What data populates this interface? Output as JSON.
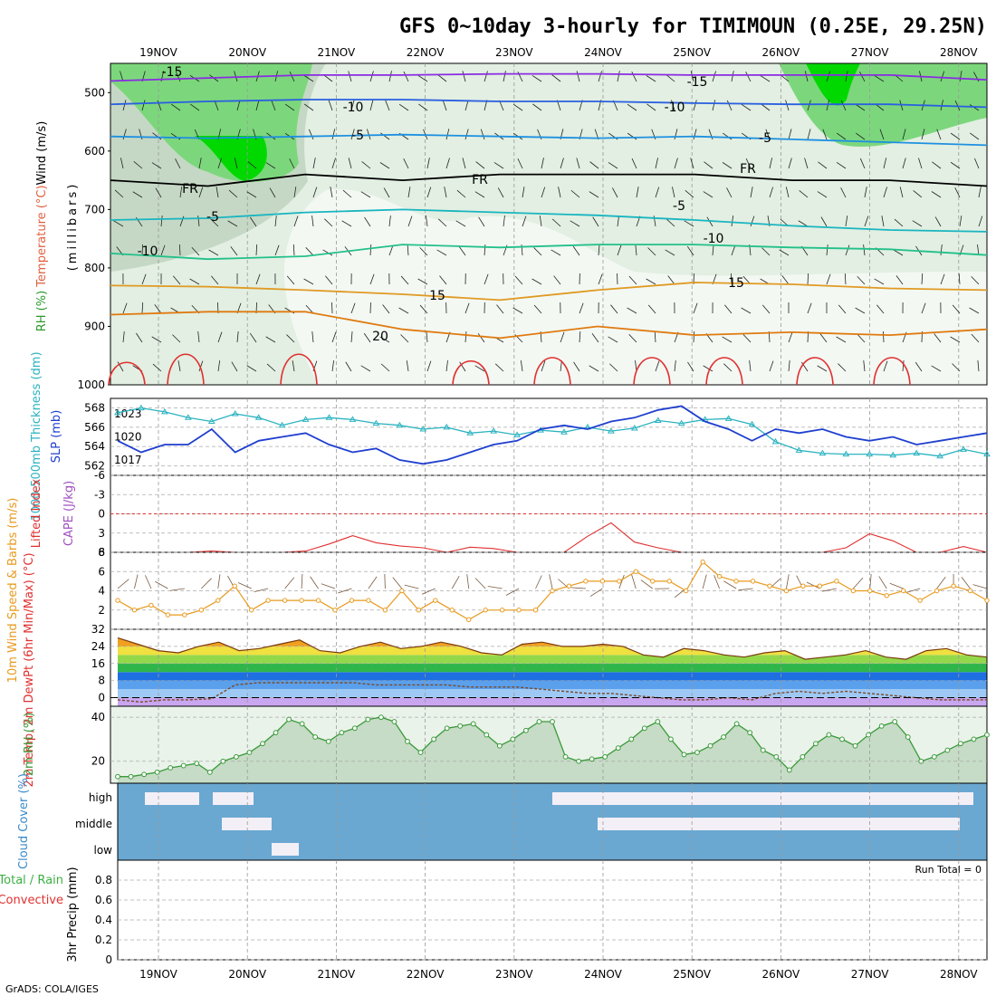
{
  "title": "GFS 0~10day 3-hourly for TIMIMOUN (0.25E, 29.25N)",
  "footer": "GrADS: COLA/IGES",
  "run_total": "Run Total = 0",
  "dates": [
    "19NOV",
    "20NOV",
    "21NOV",
    "22NOV",
    "23NOV",
    "24NOV",
    "25NOV",
    "26NOV",
    "27NOV",
    "28NOV"
  ],
  "colors": {
    "rh_dark": "#00d800",
    "rh_mid": "#7cd77c",
    "rh_light": "#e2efe2",
    "slp": "#1f3fcf",
    "thickness": "#2bb3c0",
    "lifted": "#e03030",
    "wind_speed": "#e89a1e",
    "rh2m": "#3a9a3a",
    "cloud": "#6aa8d2",
    "precip_rain": "#3cb043",
    "precip_conv": "#e03030"
  },
  "chart_data": [
    {
      "type": "heatmap",
      "panel": "upper-air",
      "ylabels": [
        "Wind (m/s)",
        "Temperature (°C)",
        "RH (%)",
        "millibars"
      ],
      "yticks": [
        500,
        600,
        700,
        800,
        900,
        1000
      ],
      "contour_labels": [
        "-15",
        "-15",
        "-10",
        "-10",
        "-5",
        "-5",
        "FR",
        "FR",
        "FR",
        "-5",
        "-5",
        "-10",
        "-10",
        "15",
        "15",
        "20"
      ],
      "isotherms": [
        {
          "name": "-15",
          "color": "#8a2be2",
          "values": [
            480,
            475,
            470,
            470,
            468,
            468,
            470,
            470,
            470,
            478
          ]
        },
        {
          "name": "-10",
          "color": "#2a5fe0",
          "values": [
            520,
            515,
            512,
            512,
            515,
            515,
            518,
            520,
            520,
            525
          ]
        },
        {
          "name": "-5",
          "color": "#1e90e0",
          "values": [
            575,
            578,
            575,
            572,
            575,
            578,
            575,
            580,
            585,
            590
          ]
        },
        {
          "name": "FR",
          "color": "#000000",
          "values": [
            650,
            660,
            640,
            650,
            640,
            640,
            640,
            650,
            650,
            660
          ]
        },
        {
          "name": "5",
          "color": "#19b5c0",
          "values": [
            718,
            715,
            705,
            700,
            705,
            710,
            718,
            728,
            735,
            738
          ]
        },
        {
          "name": "10",
          "color": "#22c08a",
          "values": [
            775,
            785,
            780,
            760,
            765,
            760,
            760,
            765,
            768,
            778
          ]
        },
        {
          "name": "15",
          "color": "#e09a22",
          "values": [
            830,
            832,
            838,
            845,
            855,
            838,
            825,
            828,
            835,
            838
          ]
        },
        {
          "name": "20",
          "color": "#e07a10",
          "values": [
            880,
            875,
            875,
            905,
            920,
            900,
            915,
            910,
            915,
            905
          ]
        }
      ]
    },
    {
      "type": "line",
      "panel": "pressure",
      "ylabel_left": "1000-500mb Thickness (dm)",
      "ylabel_right": "SLP (mb)",
      "left_ticks": [
        "568",
        "566",
        "564",
        "562"
      ],
      "right_ticks": [
        "1023",
        "1020",
        "1017"
      ],
      "series": [
        {
          "name": "SLP (mb)",
          "values": [
            1019.5,
            1018,
            1019,
            1019,
            1021,
            1018,
            1019.5,
            1020,
            1020.5,
            1019,
            1018,
            1018.5,
            1017,
            1016.5,
            1017,
            1018,
            1019,
            1019.5,
            1021,
            1021.5,
            1021,
            1022,
            1022.5,
            1023.5,
            1024,
            1022,
            1021,
            1019.5,
            1021,
            1020.5,
            1021,
            1020,
            1019.5,
            1020,
            1019,
            1019.5,
            1020,
            1020.5
          ]
        },
        {
          "name": "1000-500mb Thickness (dm)",
          "values": [
            567.5,
            568,
            567.6,
            567,
            566.6,
            567.4,
            567,
            566.2,
            566.8,
            567,
            566.8,
            566.4,
            566.2,
            565.8,
            566,
            565.4,
            565.6,
            565.2,
            565.7,
            565.5,
            566,
            565.6,
            565.9,
            566.7,
            566.4,
            566.8,
            566.9,
            566.3,
            564.5,
            563.6,
            563.3,
            563.2,
            563.2,
            563.1,
            563.3,
            563.0,
            563.7,
            563.2
          ]
        }
      ]
    },
    {
      "type": "line",
      "panel": "instability",
      "ylabel": "Lifted Index",
      "ylabel2": "CAPE (J/kg)",
      "yticks": [
        "6",
        "3",
        "0",
        "-3",
        "-6"
      ],
      "series": [
        {
          "name": "Lifted Index",
          "values": [
            6,
            6,
            6,
            6,
            5.8,
            6,
            6,
            6,
            5.8,
            4.7,
            3.4,
            4.5,
            5,
            5.3,
            6,
            5.2,
            5.4,
            6,
            6,
            6,
            3.5,
            1.4,
            4.4,
            5.3,
            6,
            6,
            6,
            6,
            6,
            6,
            6,
            5.3,
            3.1,
            4.2,
            6,
            6,
            5.1,
            6
          ]
        }
      ]
    },
    {
      "type": "line",
      "panel": "wind",
      "ylabel": "10m Wind Speed & Barbs (m/s)",
      "yticks": [
        "8",
        "6",
        "4",
        "2"
      ],
      "series": [
        {
          "name": "10m Wind Speed",
          "values": [
            3,
            2,
            2.5,
            1.5,
            1.5,
            2,
            3,
            4.5,
            2,
            3,
            3,
            3,
            3,
            2,
            3,
            3,
            2,
            4,
            2,
            3,
            2,
            1,
            2,
            2,
            2,
            2,
            4,
            4.5,
            5,
            5,
            5,
            6,
            5,
            5,
            4,
            7,
            5.5,
            5,
            5,
            4.5,
            4,
            4.5,
            4.5,
            5,
            4,
            4,
            3.5,
            4,
            3,
            4,
            4.5,
            4,
            3
          ]
        }
      ]
    },
    {
      "type": "area",
      "panel": "temperature",
      "ylabel": "2m Temp, 2m DewPt (6hr Min/Max) (°C)",
      "yticks": [
        "32",
        "24",
        "16",
        "8",
        "0"
      ],
      "series": [
        {
          "name": "2m Temp",
          "values": [
            28,
            25,
            22,
            21,
            24,
            26,
            22,
            23,
            25,
            27,
            22,
            21,
            24,
            26,
            23,
            24,
            26,
            24,
            21,
            20,
            25,
            26,
            24,
            24,
            25,
            24,
            20,
            19,
            23,
            22,
            20,
            19,
            21,
            22,
            18,
            19,
            20,
            22,
            19,
            18,
            22,
            23,
            20,
            19
          ]
        },
        {
          "name": "2m DewPt",
          "values": [
            -1,
            -2,
            -1,
            -1,
            -0.5,
            6,
            7,
            7,
            7,
            7,
            7,
            6,
            6,
            6,
            6,
            5,
            5,
            5,
            4,
            3,
            2,
            2,
            1,
            0,
            -1,
            -1,
            0,
            -1,
            2,
            3,
            2,
            3,
            2,
            1,
            0,
            -1,
            -1,
            -1
          ]
        }
      ]
    },
    {
      "type": "area",
      "panel": "rh2m",
      "ylabel": "2m RH (%)",
      "yticks": [
        "40",
        "20"
      ],
      "series": [
        {
          "name": "2m RH",
          "values": [
            13,
            13,
            14,
            15,
            17,
            18,
            19,
            15,
            20,
            22,
            24,
            28,
            33,
            39,
            37,
            31,
            29,
            33,
            35,
            39,
            40,
            38,
            29,
            24,
            30,
            35,
            36,
            37,
            32,
            27,
            30,
            34,
            38,
            38,
            22,
            20,
            21,
            22,
            26,
            30,
            35,
            38,
            30,
            23,
            24,
            27,
            31,
            37,
            33,
            25,
            22,
            16,
            22,
            28,
            32,
            30,
            27,
            32,
            36,
            38,
            31,
            20,
            22,
            25,
            28,
            30,
            32
          ]
        }
      ]
    },
    {
      "type": "heatmap",
      "panel": "cloud",
      "ylabel": "Cloud Cover (%)",
      "levels": [
        "high",
        "middle",
        "low"
      ]
    },
    {
      "type": "bar",
      "panel": "precip",
      "ylabel": "3hr Precip (mm)",
      "legend": [
        "Total / Rain",
        "Convective"
      ],
      "yticks": [
        "0.8",
        "0.6",
        "0.4",
        "0.2",
        "0"
      ],
      "values": []
    }
  ]
}
